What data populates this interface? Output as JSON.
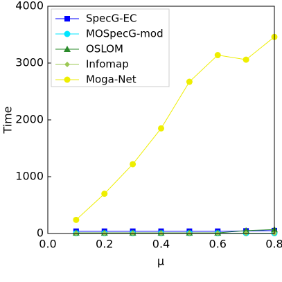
{
  "chart_data": {
    "type": "line",
    "xlabel": "μ",
    "ylabel": "Time",
    "x": [
      0.1,
      0.2,
      0.3,
      0.4,
      0.5,
      0.6,
      0.7,
      0.8
    ],
    "series": [
      {
        "name": "SpecG-EC",
        "color": "#0000ff",
        "marker": "square",
        "values": [
          40,
          40,
          40,
          40,
          40,
          40,
          45,
          50
        ]
      },
      {
        "name": "MOSpecG-mod",
        "color": "#00e5ff",
        "marker": "circle",
        "values": [
          5,
          5,
          5,
          5,
          5,
          5,
          5,
          5
        ]
      },
      {
        "name": "OSLOM",
        "color": "#2a8a2a",
        "marker": "triangle",
        "values": [
          10,
          10,
          10,
          10,
          10,
          10,
          50,
          70
        ]
      },
      {
        "name": "Infomap",
        "color": "#9cc855",
        "marker": "diamond",
        "values": [
          3,
          3,
          3,
          3,
          3,
          3,
          3,
          3
        ]
      },
      {
        "name": "Moga-Net",
        "color": "#eeee00",
        "marker": "circle",
        "values": [
          240,
          700,
          1220,
          1850,
          2670,
          3140,
          3060,
          3460
        ]
      }
    ],
    "xlim": [
      0,
      0.8
    ],
    "ylim": [
      0,
      4000
    ],
    "xticks": [
      {
        "value": 0,
        "label": "0.0"
      },
      0.2,
      0.4,
      0.6,
      0.8
    ],
    "yticks": [
      0,
      1000,
      2000,
      3000,
      4000
    ],
    "legend": "upper-left"
  }
}
